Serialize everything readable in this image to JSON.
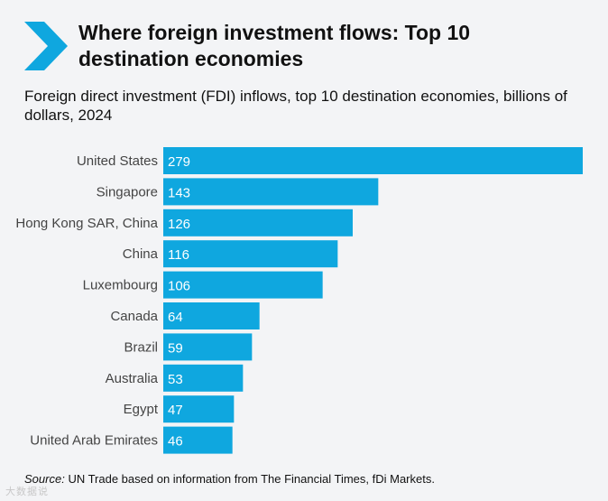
{
  "header": {
    "title": "Where foreign investment flows: Top 10 destination economies",
    "subtitle": "Foreign direct investment (FDI) inflows, top 10 destination economies, billions of dollars, 2024"
  },
  "footer": {
    "source_label": "Source:",
    "source_text": "UN Trade based on information from The Financial Times, fDi Markets."
  },
  "watermark": {
    "text": "大数据说"
  },
  "colors": {
    "bar": "#0fa7df",
    "chevron": "#0fa7df",
    "label_text": "#444444",
    "value_text": "#ffffff"
  },
  "chart_data": {
    "type": "bar",
    "orientation": "horizontal",
    "title": "Foreign direct investment (FDI) inflows, top 10 destination economies, billions of dollars, 2024",
    "xlabel": "",
    "ylabel": "",
    "categories": [
      "United States",
      "Singapore",
      "Hong Kong SAR, China",
      "China",
      "Luxembourg",
      "Canada",
      "Brazil",
      "Australia",
      "Egypt",
      "United Arab Emirates"
    ],
    "values": [
      279,
      143,
      126,
      116,
      106,
      64,
      59,
      53,
      47,
      46
    ],
    "xlim": [
      0,
      279
    ],
    "grid": false,
    "legend": "none"
  }
}
